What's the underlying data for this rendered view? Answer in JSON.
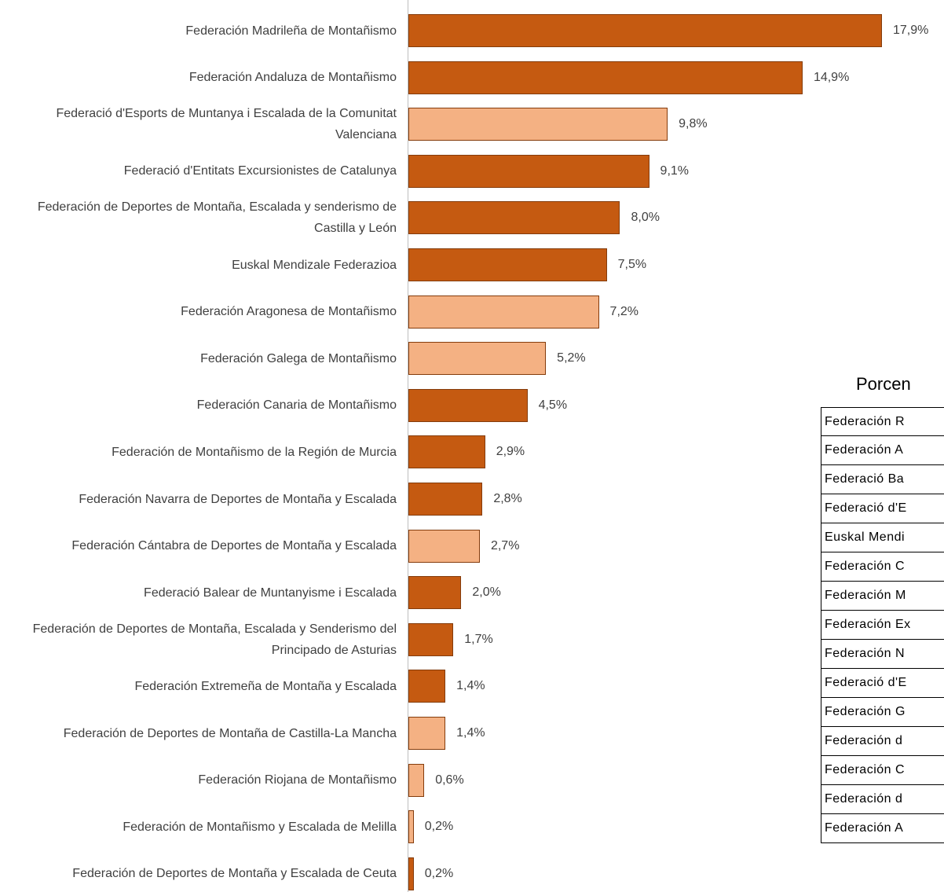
{
  "chart_data": {
    "type": "barh",
    "categories": [
      "Federación Madrileña de Montañismo",
      "Federación Andaluza de Montañismo",
      "Federació d'Esports de Muntanya i Escalada de la Comunitat Valenciana",
      "Federació d'Entitats Excursionistes de Catalunya",
      "Federación de Deportes de Montaña, Escalada y senderismo de Castilla y León",
      "Euskal Mendizale Federazioa",
      "Federación Aragonesa de Montañismo",
      "Federación Galega de Montañismo",
      "Federación Canaria de Montañismo",
      "Federación de Montañismo de la Región de Murcia",
      "Federación Navarra de Deportes de Montaña y Escalada",
      "Federación Cántabra de Deportes de Montaña y Escalada",
      "Federació Balear de Muntanyisme i Escalada",
      "Federación de Deportes de Montaña, Escalada y Senderismo del Principado de Asturias",
      "Federación Extremeña de Montaña y Escalada",
      "Federación de Deportes de Montaña de Castilla-La Mancha",
      "Federación Riojana de Montañismo",
      "Federación de Montañismo y Escalada de Melilla",
      "Federación de Deportes de Montaña y Escalada de Ceuta"
    ],
    "values": [
      17.9,
      14.9,
      9.8,
      9.1,
      8.0,
      7.5,
      7.2,
      5.2,
      4.5,
      2.9,
      2.8,
      2.7,
      2.0,
      1.7,
      1.4,
      1.4,
      0.6,
      0.2,
      0.2
    ],
    "value_labels": [
      "17,9%",
      "14,9%",
      "9,8%",
      "9,1%",
      "8,0%",
      "7,5%",
      "7,2%",
      "5,2%",
      "4,5%",
      "2,9%",
      "2,8%",
      "2,7%",
      "2,0%",
      "1,7%",
      "1,4%",
      "1,4%",
      "0,6%",
      "0,2%",
      "0,2%"
    ],
    "colors": [
      "#c55a11",
      "#c55a11",
      "#f4b183",
      "#c55a11",
      "#c55a11",
      "#c55a11",
      "#f4b183",
      "#f4b183",
      "#c55a11",
      "#c55a11",
      "#c55a11",
      "#f4b183",
      "#c55a11",
      "#c55a11",
      "#c55a11",
      "#f4b183",
      "#f4b183",
      "#f4b183",
      "#c55a11"
    ]
  },
  "table": {
    "title": "Porcen",
    "rows": [
      "Federación R",
      "Federación A",
      "Federació Ba",
      "Federació d'E",
      "Euskal Mendi",
      "Federación C",
      "Federación M",
      "Federación Ex",
      "Federación N",
      "Federació d'E",
      "Federación G",
      "Federación d",
      "Federación C",
      "Federación d",
      "Federación A"
    ]
  }
}
